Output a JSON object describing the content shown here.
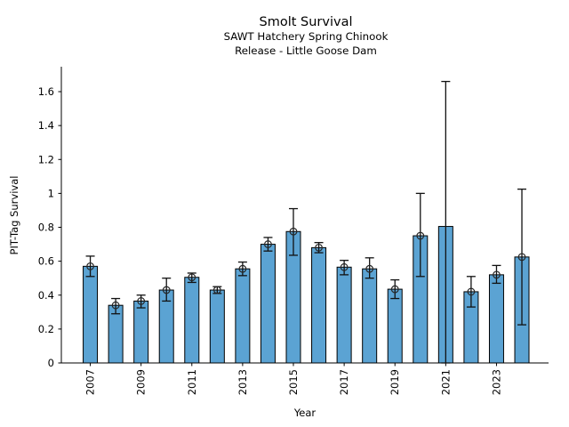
{
  "chart_data": {
    "type": "bar",
    "title": "Smolt Survival",
    "subtitle_line1": "SAWT Hatchery Spring Chinook",
    "subtitle_line2": "Release - Little Goose Dam",
    "xlabel": "Year",
    "ylabel": "PIT-Tag Survival",
    "categories": [
      2007,
      2008,
      2009,
      2010,
      2011,
      2012,
      2013,
      2014,
      2015,
      2016,
      2017,
      2018,
      2019,
      2020,
      2021,
      2022,
      2023,
      2024
    ],
    "values": [
      0.57,
      0.34,
      0.365,
      0.43,
      0.505,
      0.43,
      0.555,
      0.7,
      0.775,
      0.68,
      0.565,
      0.555,
      0.435,
      0.75,
      0.805,
      0.42,
      0.52,
      0.625
    ],
    "ci_low": [
      0.51,
      0.29,
      0.325,
      0.365,
      0.475,
      0.41,
      0.515,
      0.66,
      0.635,
      0.65,
      0.52,
      0.5,
      0.38,
      0.51,
      0.0,
      0.33,
      0.47,
      0.225
    ],
    "ci_high": [
      0.63,
      0.38,
      0.4,
      0.5,
      0.53,
      0.45,
      0.595,
      0.74,
      0.91,
      0.71,
      0.605,
      0.62,
      0.49,
      1.0,
      1.66,
      0.51,
      0.575,
      1.025
    ],
    "marker_shown": [
      true,
      true,
      true,
      true,
      true,
      true,
      true,
      true,
      true,
      true,
      true,
      true,
      true,
      true,
      false,
      true,
      true,
      true
    ],
    "marker": "open-circle",
    "yticks": {
      "values": [
        0,
        0.2,
        0.4,
        0.6,
        0.8,
        1.0,
        1.2,
        1.4,
        1.6
      ],
      "labels": [
        "0",
        "0.2",
        "0.4",
        "0.6",
        "0.8",
        "1",
        "1.2",
        "1.4",
        "1.6"
      ]
    },
    "xtick_years": [
      2007,
      2009,
      2011,
      2013,
      2015,
      2017,
      2019,
      2021,
      2023
    ],
    "ylim": [
      0,
      1.747
    ],
    "xlim": [
      2005.86,
      2025.05
    ],
    "bar_width_years": 0.56,
    "grid": false,
    "legend": null,
    "bar_color": "#5BA3D3",
    "bar_edge_color": "#000000",
    "errorbar_color": "#111111",
    "marker_edge_color": "#262626"
  }
}
